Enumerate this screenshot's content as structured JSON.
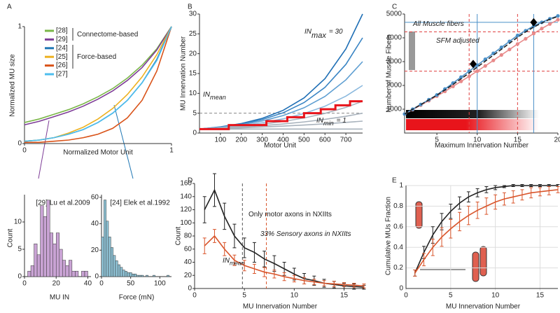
{
  "chart_data": [
    {
      "type": "line",
      "panel_label": "A",
      "xlabel": "Normalized Motor Unit",
      "ylabel": "Normalized MU size",
      "xlim": [
        0,
        1
      ],
      "ylim": [
        0,
        1
      ],
      "xticks": [
        0,
        1
      ],
      "yticks": [
        0,
        1
      ],
      "legend": "upper left",
      "x": [
        0,
        0.1,
        0.2,
        0.3,
        0.4,
        0.5,
        0.6,
        0.7,
        0.8,
        0.9,
        1
      ],
      "series": [
        {
          "name": "[28]",
          "color": "#7ab648",
          "values": [
            0.18,
            0.21,
            0.25,
            0.29,
            0.34,
            0.4,
            0.47,
            0.56,
            0.67,
            0.81,
            1
          ]
        },
        {
          "name": "[29]",
          "color": "#7e3d97",
          "values": [
            0.16,
            0.19,
            0.23,
            0.27,
            0.32,
            0.38,
            0.45,
            0.54,
            0.65,
            0.8,
            1
          ]
        },
        {
          "name": "[24]",
          "color": "#1f77b4",
          "values": [
            0.02,
            0.03,
            0.05,
            0.08,
            0.12,
            0.18,
            0.26,
            0.37,
            0.52,
            0.72,
            1
          ]
        },
        {
          "name": "[25]",
          "color": "#edb120",
          "values": [
            0.02,
            0.03,
            0.05,
            0.09,
            0.14,
            0.21,
            0.3,
            0.42,
            0.57,
            0.76,
            1
          ]
        },
        {
          "name": "[26]",
          "color": "#d95319",
          "values": [
            0.01,
            0.01,
            0.02,
            0.03,
            0.05,
            0.08,
            0.13,
            0.22,
            0.37,
            0.62,
            1
          ]
        },
        {
          "name": "[27]",
          "color": "#4dbeee",
          "values": [
            0.02,
            0.03,
            0.05,
            0.08,
            0.12,
            0.18,
            0.26,
            0.37,
            0.52,
            0.71,
            1
          ]
        }
      ],
      "annotations": [
        {
          "text": "Connectome-based"
        },
        {
          "text": "Force-based"
        }
      ]
    },
    {
      "type": "histogram",
      "title": "[29] Lu et al.2009",
      "xlabel": "MU IN",
      "ylabel": "Count",
      "color": "#c9a3d4",
      "xlim": [
        0,
        42
      ],
      "ylim": [
        0,
        15
      ],
      "xticks": [
        0,
        20,
        40
      ],
      "yticks": [
        0,
        5,
        10
      ],
      "bins": [
        2,
        4,
        6,
        8,
        10,
        12,
        14,
        16,
        18,
        20,
        22,
        24,
        26,
        28,
        30,
        32,
        34,
        36,
        38,
        40
      ],
      "values": [
        1,
        2,
        6,
        4,
        13,
        11,
        14,
        8,
        6,
        8,
        5,
        3,
        2,
        3,
        1,
        1,
        0,
        1,
        1
      ]
    },
    {
      "type": "histogram",
      "title": "[24] Elek et al.1992",
      "xlabel": "Force (mN)",
      "color": "#8fc3d6",
      "xlim": [
        0,
        120
      ],
      "ylim": [
        0,
        62
      ],
      "xticks": [
        0,
        50,
        100
      ],
      "yticks": [
        0,
        20,
        40,
        60
      ],
      "bins": [
        0,
        4,
        8,
        12,
        16,
        20,
        24,
        28,
        32,
        36,
        40,
        44,
        48,
        52,
        56,
        60,
        64,
        68,
        72,
        76,
        80,
        84,
        88,
        92,
        96,
        100,
        104,
        108,
        112,
        116,
        120
      ],
      "values": [
        30,
        58,
        42,
        30,
        22,
        16,
        12,
        9,
        7,
        5,
        4,
        3,
        3,
        2,
        2,
        1,
        1,
        1,
        0,
        1,
        0,
        0,
        1,
        0,
        0,
        0,
        0,
        0,
        1,
        0
      ]
    },
    {
      "type": "line",
      "panel_label": "B",
      "xlabel": "Motor Unit",
      "ylabel": "MU Innervation Number",
      "xlim": [
        0,
        780
      ],
      "ylim": [
        0,
        30
      ],
      "xticks": [
        100,
        200,
        300,
        400,
        500,
        600,
        700
      ],
      "yticks": [
        0,
        5,
        10,
        15,
        20,
        25,
        30
      ],
      "x": [
        0,
        100,
        200,
        300,
        400,
        500,
        600,
        700,
        780
      ],
      "hlines": [
        {
          "value": 5,
          "color": "#888888",
          "dashed": true
        }
      ],
      "series": [
        {
          "color": "#1f6fb5",
          "values": [
            1,
            1.55,
            2.39,
            3.7,
            5.72,
            8.85,
            13.7,
            21.2,
            30
          ]
        },
        {
          "color": "#3a85c4",
          "values": [
            1,
            1.5,
            2.26,
            3.4,
            5.11,
            7.68,
            11.5,
            17.3,
            24
          ]
        },
        {
          "color": "#5f9fd2",
          "values": [
            1,
            1.45,
            2.1,
            3.04,
            4.41,
            6.37,
            9.23,
            13.4,
            18
          ]
        },
        {
          "color": "#8bb9de",
          "values": [
            1,
            1.37,
            1.89,
            2.6,
            3.58,
            4.92,
            6.76,
            9.29,
            12
          ]
        },
        {
          "color": "#a9b3bd",
          "values": [
            1,
            1.3,
            1.7,
            2.23,
            2.91,
            3.79,
            4.95,
            6.46,
            8
          ]
        },
        {
          "color": "#a9b3bd",
          "values": [
            1,
            1.23,
            1.51,
            1.86,
            2.28,
            2.8,
            3.45,
            4.23,
            5
          ]
        },
        {
          "color": "#a9b3bd",
          "values": [
            1,
            1.15,
            1.32,
            1.53,
            1.76,
            2.02,
            2.33,
            2.68,
            3
          ]
        },
        {
          "color": "#a9b3bd",
          "values": [
            1,
            1,
            1,
            1,
            1,
            1,
            1,
            1,
            1
          ]
        },
        {
          "color": "#e8141b",
          "width": 3,
          "x": [
            0,
            140,
            140,
            320,
            320,
            420,
            420,
            500,
            500,
            580,
            580,
            650,
            650,
            720,
            720,
            780
          ],
          "values": [
            1,
            1,
            2,
            2,
            3,
            3,
            4,
            4,
            5,
            5,
            6,
            6,
            7,
            7,
            8,
            8
          ]
        }
      ],
      "annotations": [
        {
          "text": "IN",
          "sub": "max",
          "suffix": "= 30",
          "color": "#1f6fb5"
        },
        {
          "text": "IN",
          "sub": "mean"
        },
        {
          "text": "IN",
          "sub": "min",
          "suffix": "= 1"
        }
      ]
    },
    {
      "type": "line",
      "panel_label": "C",
      "xlabel": "Maximum Innervation Number",
      "ylabel": "Number of Muscle Fibers",
      "xlim": [
        1,
        20
      ],
      "ylim": [
        0,
        5000
      ],
      "xticks": [
        5,
        10,
        15,
        20
      ],
      "yticks": [
        1000,
        2000,
        3000,
        4000,
        5000
      ],
      "x": [
        1,
        2,
        3,
        4,
        5,
        6,
        7,
        8,
        9,
        10,
        11,
        12,
        13,
        14,
        15,
        16,
        17,
        18,
        19,
        20
      ],
      "vlines": [
        {
          "value": 9,
          "color": "#e04040",
          "dashed": true
        },
        {
          "value": 10,
          "color": "#4a90c8"
        },
        {
          "value": 15,
          "color": "#e04040",
          "dashed": true
        },
        {
          "value": 17,
          "color": "#4a90c8"
        }
      ],
      "hlines": [
        {
          "value": 4650,
          "color": "#4a90c8"
        },
        {
          "value": 4250,
          "color": "#e04040",
          "dashed": true
        },
        {
          "value": 2600,
          "color": "#e04040",
          "dashed": true
        }
      ],
      "series": [
        {
          "color": "#e88a8a",
          "marker": "circle",
          "values": [
            800,
            980,
            1170,
            1360,
            1550,
            1750,
            1960,
            2170,
            2380,
            2600,
            2820,
            3050,
            3280,
            3510,
            3740,
            3960,
            4180,
            4390,
            4580,
            4760
          ]
        },
        {
          "color": "#4a90c8",
          "marker": "circle",
          "values": [
            800,
            1000,
            1200,
            1400,
            1600,
            1850,
            2100,
            2350,
            2600,
            2850,
            3100,
            3350,
            3600,
            3850,
            4100,
            4300,
            4500,
            4650,
            4800,
            4920
          ]
        },
        {
          "color": "#222222",
          "dashed": true,
          "values": [
            800,
            1000,
            1190,
            1390,
            1590,
            1810,
            2040,
            2280,
            2520,
            2770,
            3020,
            3270,
            3520,
            3770,
            4020,
            4250,
            4450,
            4620,
            4780,
            4900
          ]
        },
        {
          "color": "#000000",
          "style": "points",
          "marker": "diamond",
          "x": [
            9.5,
            17
          ],
          "values": [
            2900,
            4650
          ]
        }
      ],
      "annotations": [
        {
          "text": "All Muscle fibers",
          "color": "#1f77b4"
        },
        {
          "text": "SFM adjusted",
          "color": "#e02020"
        }
      ]
    },
    {
      "type": "line",
      "panel_label": "D",
      "xlabel": "MU Innervation Number",
      "ylabel": "Count",
      "xlim": [
        0,
        17
      ],
      "ylim": [
        0,
        160
      ],
      "xticks": [
        0,
        5,
        10,
        15
      ],
      "yticks": [
        0,
        20,
        40,
        60,
        80,
        100,
        120,
        140,
        160
      ],
      "x": [
        1,
        2,
        3,
        4,
        5,
        6,
        7,
        8,
        9,
        10,
        11,
        12,
        13,
        14,
        15,
        16,
        17
      ],
      "vlines": [
        {
          "value": 4.8,
          "color": "#555555",
          "dashed": true
        },
        {
          "value": 7.2,
          "color": "#d9552b",
          "dashed": true
        }
      ],
      "series": [
        {
          "color": "#222222",
          "values": [
            120,
            150,
            110,
            80,
            62,
            55,
            45,
            38,
            30,
            22,
            15,
            12,
            8,
            6,
            4,
            3,
            2
          ],
          "errors": [
            20,
            25,
            20,
            18,
            15,
            15,
            12,
            12,
            10,
            9,
            8,
            7,
            6,
            5,
            4,
            4,
            3
          ]
        },
        {
          "color": "#d9552b",
          "values": [
            65,
            80,
            60,
            43,
            35,
            30,
            25,
            22,
            18,
            15,
            12,
            10,
            8,
            7,
            6,
            5,
            4
          ],
          "errors": [
            12,
            10,
            10,
            8,
            8,
            7,
            7,
            6,
            6,
            5,
            5,
            4,
            4,
            4,
            3,
            3,
            3
          ]
        }
      ],
      "annotations": [
        {
          "text": "Only motor axons in NXIIts"
        },
        {
          "text": "33% Sensory axons in NXIIts",
          "color": "#d9552b"
        },
        {
          "text": "IN",
          "sub": "mean"
        }
      ]
    },
    {
      "type": "line",
      "panel_label": "E",
      "xlabel": "MU Innervation Number",
      "ylabel": "Cumulative MUs Fraction",
      "grid": true,
      "xlim": [
        0,
        17
      ],
      "ylim": [
        0,
        1
      ],
      "xticks": [
        0,
        5,
        10,
        15
      ],
      "yticks": [
        0,
        0.2,
        0.4,
        0.6,
        0.8,
        1
      ],
      "x": [
        1,
        2,
        3,
        4,
        5,
        6,
        7,
        8,
        9,
        10,
        11,
        12,
        13,
        14,
        15,
        16,
        17
      ],
      "series": [
        {
          "color": "#222222",
          "values": [
            0.15,
            0.35,
            0.52,
            0.65,
            0.75,
            0.83,
            0.89,
            0.93,
            0.96,
            0.98,
            0.99,
            1,
            1,
            1,
            1,
            1,
            1
          ],
          "errors": [
            0.03,
            0.06,
            0.08,
            0.08,
            0.07,
            0.06,
            0.05,
            0.04,
            0.03,
            0.02,
            0.01,
            0.01,
            0.01,
            0.01,
            0.01,
            0.01,
            0.01
          ]
        },
        {
          "color": "#d9552b",
          "values": [
            0.15,
            0.28,
            0.4,
            0.5,
            0.58,
            0.65,
            0.71,
            0.76,
            0.8,
            0.84,
            0.87,
            0.89,
            0.91,
            0.93,
            0.94,
            0.95,
            0.96
          ],
          "errors": [
            0.03,
            0.06,
            0.08,
            0.09,
            0.09,
            0.09,
            0.09,
            0.08,
            0.08,
            0.07,
            0.06,
            0.06,
            0.05,
            0.05,
            0.04,
            0.04,
            0.03
          ]
        }
      ]
    }
  ]
}
